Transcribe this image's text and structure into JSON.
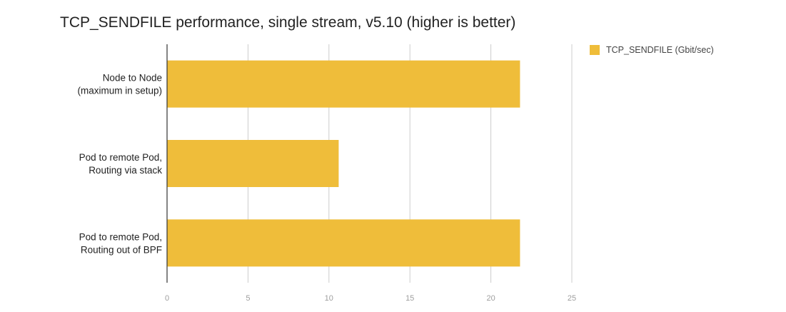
{
  "chart_data": {
    "type": "bar",
    "orientation": "horizontal",
    "title": "TCP_SENDFILE performance, single stream, v5.10 (higher is better)",
    "categories": [
      [
        "Node to Node",
        "(maximum in setup)"
      ],
      [
        "Pod to remote Pod,",
        "Routing via stack"
      ],
      [
        "Pod to remote Pod,",
        "Routing out of BPF"
      ]
    ],
    "series": [
      {
        "name": "TCP_SENDFILE (Gbit/sec)",
        "values": [
          21.8,
          10.6,
          21.8
        ],
        "color": "#efbd3a"
      }
    ],
    "xlim": [
      0,
      25
    ],
    "xticks": [
      0,
      5,
      10,
      15,
      20,
      25
    ],
    "grid": true,
    "legend_position": "top-right",
    "xlabel": "",
    "ylabel": ""
  }
}
